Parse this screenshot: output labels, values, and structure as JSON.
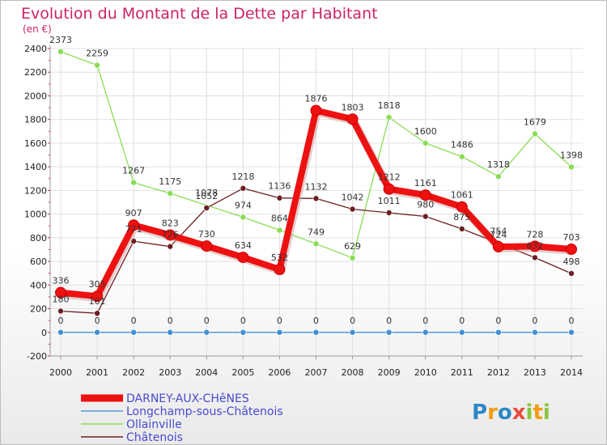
{
  "chart_data": {
    "type": "line",
    "title": "Evolution du Montant de la Dette par Habitant",
    "subtitle": "(en €)",
    "ylim": [
      -200,
      2400
    ],
    "yticks": [
      -200,
      0,
      200,
      400,
      600,
      800,
      1000,
      1200,
      1400,
      1600,
      1800,
      2000,
      2200,
      2400
    ],
    "ytick_labels": [
      "-200",
      "0",
      "200",
      "400",
      "600",
      "800",
      "1000",
      "1200",
      "1400",
      "1600",
      "1800",
      "2000",
      "2200",
      "2400"
    ],
    "categories": [
      "2000",
      "2001",
      "2002",
      "2003",
      "2004",
      "2005",
      "2006",
      "2007",
      "2008",
      "2009",
      "2010",
      "2011",
      "2012",
      "2013",
      "2014"
    ],
    "grid": true,
    "legend_position": "bottom-left",
    "series": [
      {
        "name": "DARNEY-AUX-CHêNES",
        "color": "#ee1111",
        "values": [
          336,
          305,
          907,
          823,
          730,
          634,
          532,
          1876,
          1803,
          1212,
          1161,
          1061,
          724,
          728,
          703
        ],
        "labels": [
          "336",
          "305",
          "907",
          "823",
          "730",
          "634",
          "532",
          "1876",
          "1803",
          "1212",
          "1161",
          "1061",
          "724",
          "728",
          "703"
        ]
      },
      {
        "name": "Longchamp-sous-Châtenois",
        "color": "#5599dd",
        "values": [
          0,
          0,
          0,
          0,
          0,
          0,
          0,
          0,
          0,
          0,
          0,
          0,
          0,
          0,
          0
        ],
        "labels": [
          "0",
          "0",
          "0",
          "0",
          "0",
          "0",
          "0",
          "0",
          "0",
          "0",
          "0",
          "0",
          "0",
          "0",
          "0"
        ]
      },
      {
        "name": "Ollainville",
        "color": "#88dd55",
        "values": [
          2373,
          2259,
          1267,
          1175,
          null,
          974,
          864,
          749,
          629,
          1818,
          1600,
          1486,
          1318,
          1679,
          1398
        ],
        "labels": [
          "2373",
          "2259",
          "1267",
          "1175",
          "",
          "974",
          "864",
          "749",
          "629",
          "1818",
          "1600",
          "1486",
          "1318",
          "1679",
          "1398"
        ]
      },
      {
        "name": "Châtenois",
        "color": "#6b1f22",
        "values": [
          180,
          161,
          771,
          726,
          1052,
          1218,
          1136,
          1132,
          1042,
          1011,
          980,
          875,
          754,
          632,
          498
        ],
        "labels": [
          "180",
          "161",
          "771",
          "726",
          "1052",
          "1218",
          "1136",
          "1132",
          "1042",
          "1011",
          "980",
          "875",
          "754",
          "632",
          "498"
        ]
      }
    ],
    "extra_labels": [
      {
        "text": "1078",
        "x": "2004",
        "y": 1078
      }
    ]
  },
  "branding": {
    "logo_text": "Proxiti",
    "logo_letters": [
      "P",
      "r",
      "o",
      "x",
      "i",
      "t",
      "i"
    ],
    "logo_colors": [
      "#2e86c8",
      "#f39c12",
      "#2e86c8",
      "#e74c3c",
      "#8ac43f",
      "#f39c12",
      "#8ac43f"
    ]
  },
  "colors": {
    "title": "#cc2266",
    "grid": "#e0e0e0",
    "axis": "#999999"
  }
}
